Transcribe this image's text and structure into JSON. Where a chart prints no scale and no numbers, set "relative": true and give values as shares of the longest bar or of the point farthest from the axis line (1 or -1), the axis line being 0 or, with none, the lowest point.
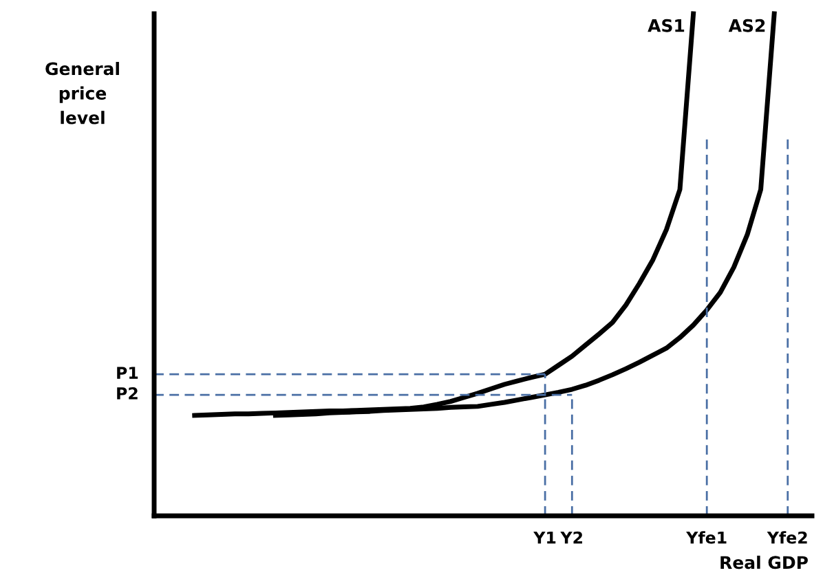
{
  "chart_data": {
    "type": "line",
    "relative": true,
    "xlabel": "Real GDP",
    "ylabel": "General\nprice\nlevel",
    "categories": [
      null,
      null,
      null,
      null,
      null,
      null,
      null,
      null,
      null,
      null,
      null,
      null,
      null,
      null,
      null,
      null,
      null,
      null,
      null,
      null,
      null,
      null,
      null,
      null,
      null,
      null,
      null,
      null,
      null,
      "Y1",
      null,
      "Y2",
      null,
      null,
      null,
      null,
      null,
      null,
      null,
      null,
      null,
      "Yfe1",
      null,
      null,
      null,
      null,
      null,
      "Yfe2",
      null
    ],
    "annotations": [
      "P1",
      "P2"
    ],
    "ref_lines": [
      {
        "axis": "x",
        "value": "Y1",
        "color": "#4a6fa5",
        "line_style": "dashed"
      },
      {
        "axis": "x",
        "value": "Y2",
        "color": "#4a6fa5",
        "line_style": "dashed"
      },
      {
        "axis": "x",
        "value": "Yfe1",
        "color": "#4a6fa5",
        "line_style": "dashed"
      },
      {
        "axis": "x",
        "value": "Yfe2",
        "color": "#4a6fa5",
        "line_style": "dashed"
      }
    ],
    "series": [
      {
        "name": "AS1",
        "color": "#000000",
        "line_style": "solid",
        "values": [
          null,
          null,
          null,
          0.2,
          0.201,
          0.202,
          0.203,
          0.203,
          0.204,
          0.205,
          0.206,
          0.207,
          0.208,
          0.209,
          0.209,
          0.21,
          0.211,
          0.212,
          0.213,
          0.214,
          0.217,
          0.222,
          0.228,
          0.236,
          0.244,
          0.253,
          0.262,
          0.269,
          0.276,
          0.282,
          0.3,
          0.318,
          0.34,
          0.362,
          0.385,
          0.42,
          0.463,
          0.51,
          0.57,
          0.65,
          1.0,
          null,
          null,
          null,
          null,
          null,
          null,
          null,
          null
        ]
      },
      {
        "name": "AS2",
        "color": "#000000",
        "line_style": "solid",
        "values": [
          null,
          null,
          null,
          null,
          null,
          null,
          null,
          null,
          null,
          0.2,
          0.201,
          0.202,
          0.203,
          0.205,
          0.206,
          0.207,
          0.208,
          0.21,
          0.211,
          0.212,
          0.213,
          0.214,
          0.216,
          0.217,
          0.218,
          0.222,
          0.226,
          0.231,
          0.236,
          0.241,
          0.246,
          0.252,
          0.26,
          0.27,
          0.281,
          0.293,
          0.306,
          0.32,
          0.334,
          0.355,
          0.38,
          0.41,
          0.445,
          0.495,
          0.56,
          0.65,
          1.0,
          null,
          null
        ]
      },
      {
        "color": "#4a6fa5",
        "line_style": "dashed",
        "values": [
          0.282,
          0.282,
          0.282,
          0.282,
          0.282,
          0.282,
          0.282,
          0.282,
          0.282,
          0.282,
          0.282,
          0.282,
          0.282,
          0.282,
          0.282,
          0.282,
          0.282,
          0.282,
          0.282,
          0.282,
          0.282,
          0.282,
          0.282,
          0.282,
          0.282,
          0.282,
          0.282,
          0.282,
          0.282,
          0.282,
          null,
          null,
          null,
          null,
          null,
          null,
          null,
          null,
          null,
          null,
          null,
          null,
          null,
          null,
          null,
          null,
          null,
          null,
          null
        ]
      },
      {
        "color": "#4a6fa5",
        "line_style": "dashed",
        "values": [
          0.241,
          0.241,
          0.241,
          0.241,
          0.241,
          0.241,
          0.241,
          0.241,
          0.241,
          0.241,
          0.241,
          0.241,
          0.241,
          0.241,
          0.241,
          0.241,
          0.241,
          0.241,
          0.241,
          0.241,
          0.241,
          0.241,
          0.241,
          0.241,
          0.241,
          0.241,
          0.241,
          0.241,
          0.241,
          0.241,
          0.241,
          0.241,
          null,
          null,
          null,
          null,
          null,
          null,
          null,
          null,
          null,
          null,
          null,
          null,
          null,
          null,
          null,
          null,
          null
        ]
      }
    ]
  }
}
